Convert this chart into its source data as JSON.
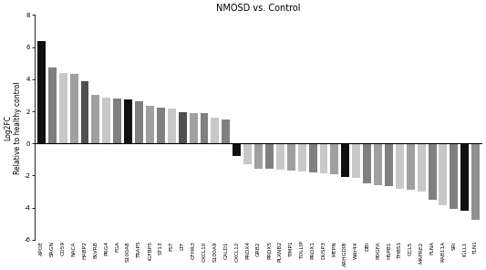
{
  "title": "NMOSD vs. Control",
  "ylabel": "Log2FC\nRelative to healthy control",
  "ylim": [
    -6,
    8
  ],
  "yticks": [
    -6,
    -4,
    -2,
    0,
    2,
    4,
    6,
    8
  ],
  "categories": [
    "APOE",
    "SRGN",
    "CD59",
    "NACA",
    "HABP2",
    "BLVRB",
    "PRG4",
    "FGA",
    "S100A8",
    "TRAP5",
    "IGFBP5",
    "ST13",
    "FST",
    "LTF",
    "CFHR3",
    "CXCL10",
    "S100A9",
    "CALD1",
    "CXCL12",
    "PRDX4",
    "GRB2",
    "PRDX5",
    "PLXNB2",
    "TIMP1",
    "TOLLIP",
    "PRDX1",
    "DUSP3",
    "MTPN",
    "ARHGDIB",
    "Wdr44",
    "DBI",
    "PDGFA",
    "HSPB1",
    "THBS1",
    "CCL5",
    "MAPRE2",
    "FLNA",
    "RAB11A",
    "SRI",
    "IGLL1",
    "TLN1"
  ],
  "values": [
    6.35,
    4.75,
    4.4,
    4.35,
    3.85,
    3.0,
    2.85,
    2.8,
    2.75,
    2.65,
    2.35,
    2.25,
    2.2,
    1.95,
    1.9,
    1.9,
    1.6,
    1.5,
    -0.8,
    -1.3,
    -1.55,
    -1.6,
    -1.65,
    -1.7,
    -1.75,
    -1.8,
    -1.85,
    -1.9,
    -2.1,
    -2.15,
    -2.5,
    -2.6,
    -2.65,
    -2.8,
    -2.9,
    -3.0,
    -3.5,
    -3.85,
    -4.1,
    -4.2,
    -4.75
  ],
  "colors": [
    "#111111",
    "#808080",
    "#c8c8c8",
    "#a0a0a0",
    "#505050",
    "#a0a0a0",
    "#c8c8c8",
    "#808080",
    "#111111",
    "#808080",
    "#a0a0a0",
    "#808080",
    "#c8c8c8",
    "#505050",
    "#a0a0a0",
    "#808080",
    "#c8c8c8",
    "#808080",
    "#111111",
    "#c8c8c8",
    "#a0a0a0",
    "#808080",
    "#c8c8c8",
    "#a0a0a0",
    "#c8c8c8",
    "#808080",
    "#c8c8c8",
    "#a0a0a0",
    "#111111",
    "#c8c8c8",
    "#808080",
    "#a0a0a0",
    "#808080",
    "#c8c8c8",
    "#a0a0a0",
    "#c8c8c8",
    "#808080",
    "#c8c8c8",
    "#808080",
    "#111111",
    "#909090"
  ],
  "figsize": [
    5.33,
    2.96
  ],
  "dpi": 100,
  "title_fontsize": 7,
  "ylabel_fontsize": 5.5,
  "tick_fontsize": 5,
  "xlabel_fontsize": 4.2
}
